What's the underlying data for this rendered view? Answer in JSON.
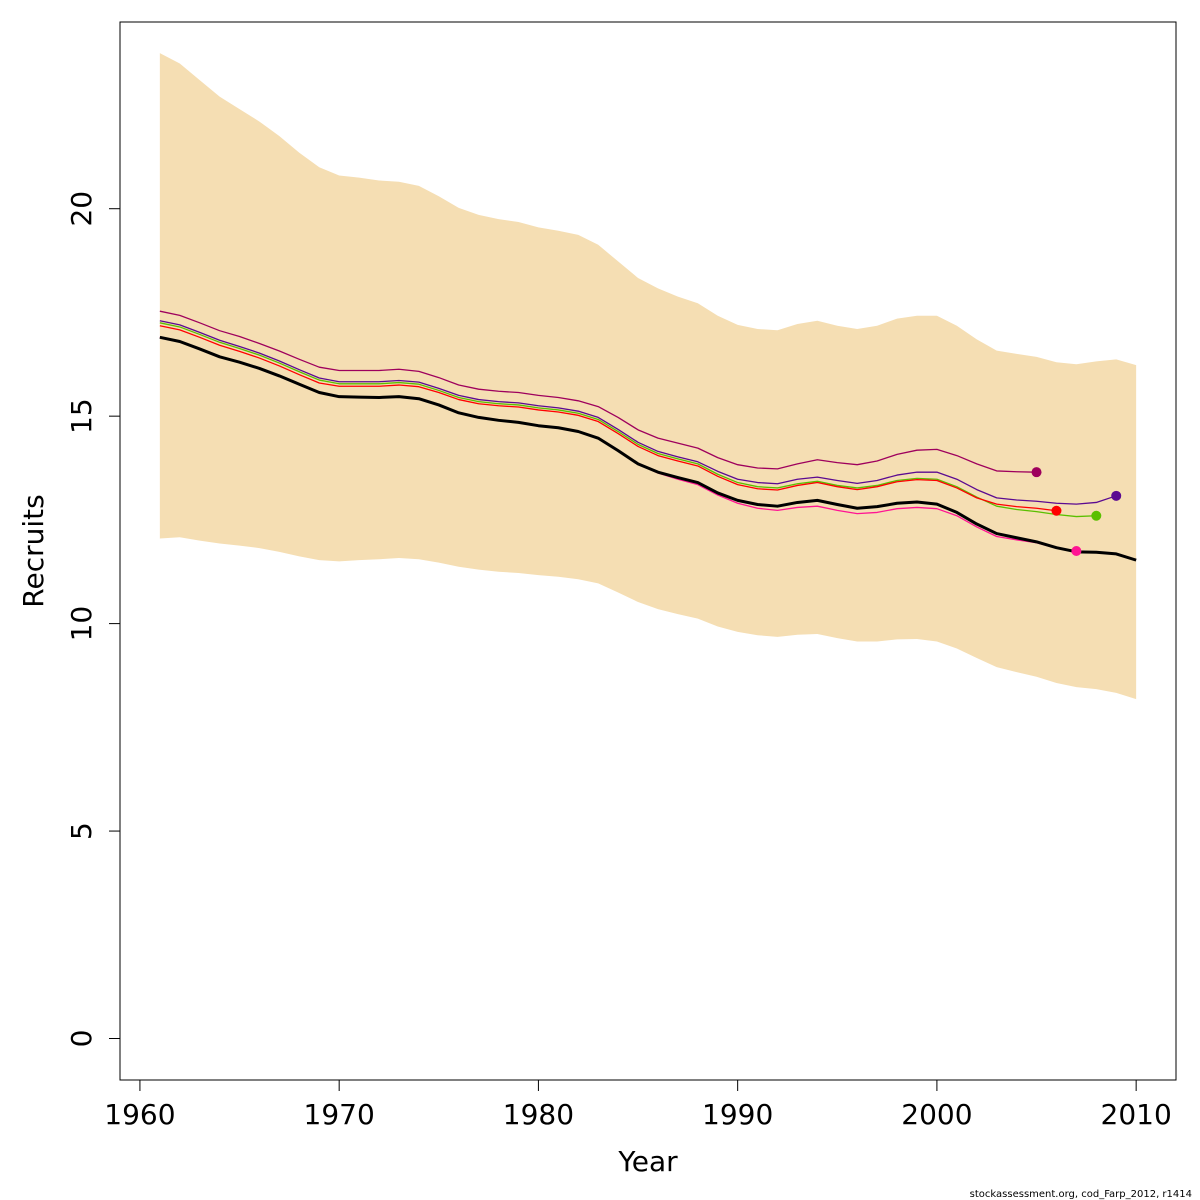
{
  "chart_data": {
    "type": "line",
    "title": "",
    "xlabel": "Year",
    "ylabel": "Recruits",
    "xlim": [
      1959,
      2012
    ],
    "ylim": [
      -1,
      24.5
    ],
    "x_ticks": [
      1960,
      1970,
      1980,
      1990,
      2000,
      2010
    ],
    "y_ticks": [
      0,
      5,
      10,
      15,
      20
    ],
    "grid": false,
    "band": {
      "color": "#F5DEB3",
      "x": [
        1961,
        1962,
        1963,
        1964,
        1965,
        1966,
        1967,
        1968,
        1969,
        1970,
        1971,
        1972,
        1973,
        1974,
        1975,
        1976,
        1977,
        1978,
        1979,
        1980,
        1981,
        1982,
        1983,
        1984,
        1985,
        1986,
        1987,
        1988,
        1989,
        1990,
        1991,
        1992,
        1993,
        1994,
        1995,
        1996,
        1997,
        1998,
        1999,
        2000,
        2001,
        2002,
        2003,
        2004,
        2005,
        2006,
        2007,
        2008,
        2009,
        2010
      ],
      "upper": [
        23.75,
        23.5,
        23.1,
        22.7,
        22.4,
        22.1,
        21.75,
        21.35,
        21.0,
        20.8,
        20.75,
        20.68,
        20.65,
        20.55,
        20.3,
        20.02,
        19.85,
        19.75,
        19.68,
        19.55,
        19.47,
        19.37,
        19.13,
        18.73,
        18.33,
        18.08,
        17.88,
        17.72,
        17.42,
        17.2,
        17.1,
        17.07,
        17.22,
        17.3,
        17.18,
        17.1,
        17.18,
        17.35,
        17.42,
        17.42,
        17.18,
        16.85,
        16.58,
        16.5,
        16.43,
        16.3,
        16.25,
        16.32,
        16.37,
        16.23
      ],
      "lower": [
        12.05,
        12.08,
        12.0,
        11.93,
        11.88,
        11.82,
        11.73,
        11.62,
        11.53,
        11.5,
        11.53,
        11.55,
        11.58,
        11.55,
        11.47,
        11.37,
        11.3,
        11.25,
        11.22,
        11.17,
        11.13,
        11.07,
        10.97,
        10.75,
        10.52,
        10.35,
        10.23,
        10.12,
        9.93,
        9.8,
        9.72,
        9.68,
        9.73,
        9.75,
        9.65,
        9.57,
        9.57,
        9.62,
        9.63,
        9.57,
        9.4,
        9.17,
        8.95,
        8.83,
        8.72,
        8.57,
        8.47,
        8.42,
        8.33,
        8.18
      ]
    },
    "series": [
      {
        "color": "#9E005D",
        "width": 1.3,
        "x": [
          1961,
          1962,
          1963,
          1964,
          1965,
          1966,
          1967,
          1968,
          1969,
          1970,
          1971,
          1972,
          1973,
          1974,
          1975,
          1976,
          1977,
          1978,
          1979,
          1980,
          1981,
          1982,
          1983,
          1984,
          1985,
          1986,
          1987,
          1988,
          1989,
          1990,
          1991,
          1992,
          1993,
          1994,
          1995,
          1996,
          1997,
          1998,
          1999,
          2000,
          2001,
          2002,
          2003,
          2004,
          2005
        ],
        "y": [
          17.53,
          17.43,
          17.25,
          17.06,
          16.92,
          16.75,
          16.57,
          16.37,
          16.18,
          16.1,
          16.1,
          16.1,
          16.13,
          16.08,
          15.93,
          15.75,
          15.65,
          15.6,
          15.57,
          15.5,
          15.45,
          15.37,
          15.23,
          14.97,
          14.67,
          14.47,
          14.35,
          14.23,
          14.0,
          13.83,
          13.75,
          13.73,
          13.85,
          13.95,
          13.88,
          13.83,
          13.92,
          14.08,
          14.18,
          14.2,
          14.05,
          13.85,
          13.68,
          13.66,
          13.65
        ]
      },
      {
        "color": "#5B0A91",
        "width": 1.3,
        "x": [
          1961,
          1962,
          1963,
          1964,
          1965,
          1966,
          1967,
          1968,
          1969,
          1970,
          1971,
          1972,
          1973,
          1974,
          1975,
          1976,
          1977,
          1978,
          1979,
          1980,
          1981,
          1982,
          1983,
          1984,
          1985,
          1986,
          1987,
          1988,
          1989,
          1990,
          1991,
          1992,
          1993,
          1994,
          1995,
          1996,
          1997,
          1998,
          1999,
          2000,
          2001,
          2002,
          2003,
          2004,
          2005,
          2006,
          2007,
          2008,
          2009
        ],
        "y": [
          17.3,
          17.2,
          17.02,
          16.83,
          16.68,
          16.52,
          16.33,
          16.12,
          15.92,
          15.83,
          15.83,
          15.83,
          15.86,
          15.82,
          15.67,
          15.5,
          15.4,
          15.35,
          15.32,
          15.25,
          15.2,
          15.12,
          14.97,
          14.68,
          14.37,
          14.15,
          14.02,
          13.9,
          13.67,
          13.48,
          13.4,
          13.37,
          13.48,
          13.53,
          13.45,
          13.38,
          13.45,
          13.58,
          13.65,
          13.65,
          13.48,
          13.23,
          13.03,
          12.98,
          12.95,
          12.9,
          12.88,
          12.92,
          13.08
        ]
      },
      {
        "color": "#5ABF00",
        "width": 1.3,
        "x": [
          1961,
          1962,
          1963,
          1964,
          1965,
          1966,
          1967,
          1968,
          1969,
          1970,
          1971,
          1972,
          1973,
          1974,
          1975,
          1976,
          1977,
          1978,
          1979,
          1980,
          1981,
          1982,
          1983,
          1984,
          1985,
          1986,
          1987,
          1988,
          1989,
          1990,
          1991,
          1992,
          1993,
          1994,
          1995,
          1996,
          1997,
          1998,
          1999,
          2000,
          2001,
          2002,
          2003,
          2004,
          2005,
          2006,
          2007,
          2008
        ],
        "y": [
          17.25,
          17.15,
          16.97,
          16.78,
          16.63,
          16.47,
          16.28,
          16.07,
          15.87,
          15.78,
          15.78,
          15.78,
          15.81,
          15.77,
          15.62,
          15.45,
          15.35,
          15.3,
          15.27,
          15.2,
          15.15,
          15.07,
          14.92,
          14.63,
          14.32,
          14.1,
          13.97,
          13.85,
          13.6,
          13.4,
          13.3,
          13.27,
          13.37,
          13.43,
          13.33,
          13.27,
          13.33,
          13.45,
          13.5,
          13.48,
          13.3,
          13.05,
          12.83,
          12.75,
          12.7,
          12.63,
          12.58,
          12.6
        ]
      },
      {
        "color": "#FF0000",
        "width": 1.3,
        "x": [
          1961,
          1962,
          1963,
          1964,
          1965,
          1966,
          1967,
          1968,
          1969,
          1970,
          1971,
          1972,
          1973,
          1974,
          1975,
          1976,
          1977,
          1978,
          1979,
          1980,
          1981,
          1982,
          1983,
          1984,
          1985,
          1986,
          1987,
          1988,
          1989,
          1990,
          1991,
          1992,
          1993,
          1994,
          1995,
          1996,
          1997,
          1998,
          1999,
          2000,
          2001,
          2002,
          2003,
          2004,
          2005,
          2006
        ],
        "y": [
          17.18,
          17.08,
          16.9,
          16.71,
          16.56,
          16.4,
          16.21,
          16.0,
          15.8,
          15.72,
          15.72,
          15.72,
          15.75,
          15.71,
          15.57,
          15.4,
          15.3,
          15.25,
          15.22,
          15.15,
          15.1,
          15.02,
          14.87,
          14.58,
          14.27,
          14.05,
          13.92,
          13.8,
          13.55,
          13.35,
          13.25,
          13.22,
          13.33,
          13.4,
          13.3,
          13.23,
          13.3,
          13.42,
          13.47,
          13.45,
          13.27,
          13.03,
          12.88,
          12.82,
          12.78,
          12.72
        ]
      },
      {
        "color": "#FF1493",
        "width": 1.3,
        "x": [
          1961,
          1962,
          1963,
          1964,
          1965,
          1966,
          1967,
          1968,
          1969,
          1970,
          1971,
          1972,
          1973,
          1974,
          1975,
          1976,
          1977,
          1978,
          1979,
          1980,
          1981,
          1982,
          1983,
          1984,
          1985,
          1986,
          1987,
          1988,
          1989,
          1990,
          1991,
          1992,
          1993,
          1994,
          1995,
          1996,
          1997,
          1998,
          1999,
          2000,
          2001,
          2002,
          2003,
          2004,
          2005,
          2006,
          2007
        ],
        "y": [
          16.9,
          16.8,
          16.62,
          16.43,
          16.3,
          16.15,
          15.97,
          15.77,
          15.57,
          15.47,
          15.47,
          15.45,
          15.48,
          15.42,
          15.27,
          15.08,
          14.97,
          14.9,
          14.85,
          14.77,
          14.72,
          14.63,
          14.47,
          14.17,
          13.85,
          13.63,
          13.48,
          13.35,
          13.1,
          12.9,
          12.78,
          12.73,
          12.8,
          12.83,
          12.73,
          12.65,
          12.68,
          12.77,
          12.8,
          12.77,
          12.6,
          12.33,
          12.1,
          12.02,
          11.95,
          11.82,
          11.75
        ]
      },
      {
        "color": "#000000",
        "width": 3,
        "x": [
          1961,
          1962,
          1963,
          1964,
          1965,
          1966,
          1967,
          1968,
          1969,
          1970,
          1971,
          1972,
          1973,
          1974,
          1975,
          1976,
          1977,
          1978,
          1979,
          1980,
          1981,
          1982,
          1983,
          1984,
          1985,
          1986,
          1987,
          1988,
          1989,
          1990,
          1991,
          1992,
          1993,
          1994,
          1995,
          1996,
          1997,
          1998,
          1999,
          2000,
          2001,
          2002,
          2003,
          2004,
          2005,
          2006,
          2007,
          2008,
          2009,
          2010
        ],
        "y": [
          16.9,
          16.8,
          16.62,
          16.43,
          16.3,
          16.15,
          15.97,
          15.77,
          15.57,
          15.47,
          15.46,
          15.45,
          15.47,
          15.42,
          15.27,
          15.08,
          14.97,
          14.9,
          14.85,
          14.77,
          14.72,
          14.63,
          14.47,
          14.17,
          13.85,
          13.65,
          13.52,
          13.4,
          13.15,
          12.97,
          12.87,
          12.83,
          12.92,
          12.97,
          12.87,
          12.78,
          12.82,
          12.9,
          12.93,
          12.88,
          12.68,
          12.4,
          12.17,
          12.07,
          11.97,
          11.83,
          11.73,
          11.72,
          11.68,
          11.53
        ]
      }
    ],
    "points": [
      {
        "x": 2005,
        "y": 13.65,
        "color": "#9E005D"
      },
      {
        "x": 2006,
        "y": 12.72,
        "color": "#FF0000"
      },
      {
        "x": 2007,
        "y": 11.75,
        "color": "#FF1493"
      },
      {
        "x": 2008,
        "y": 12.6,
        "color": "#5ABF00"
      },
      {
        "x": 2009,
        "y": 13.08,
        "color": "#5B0A91"
      }
    ]
  },
  "footer": "stockassessment.org, cod_Farp_2012, r1414"
}
